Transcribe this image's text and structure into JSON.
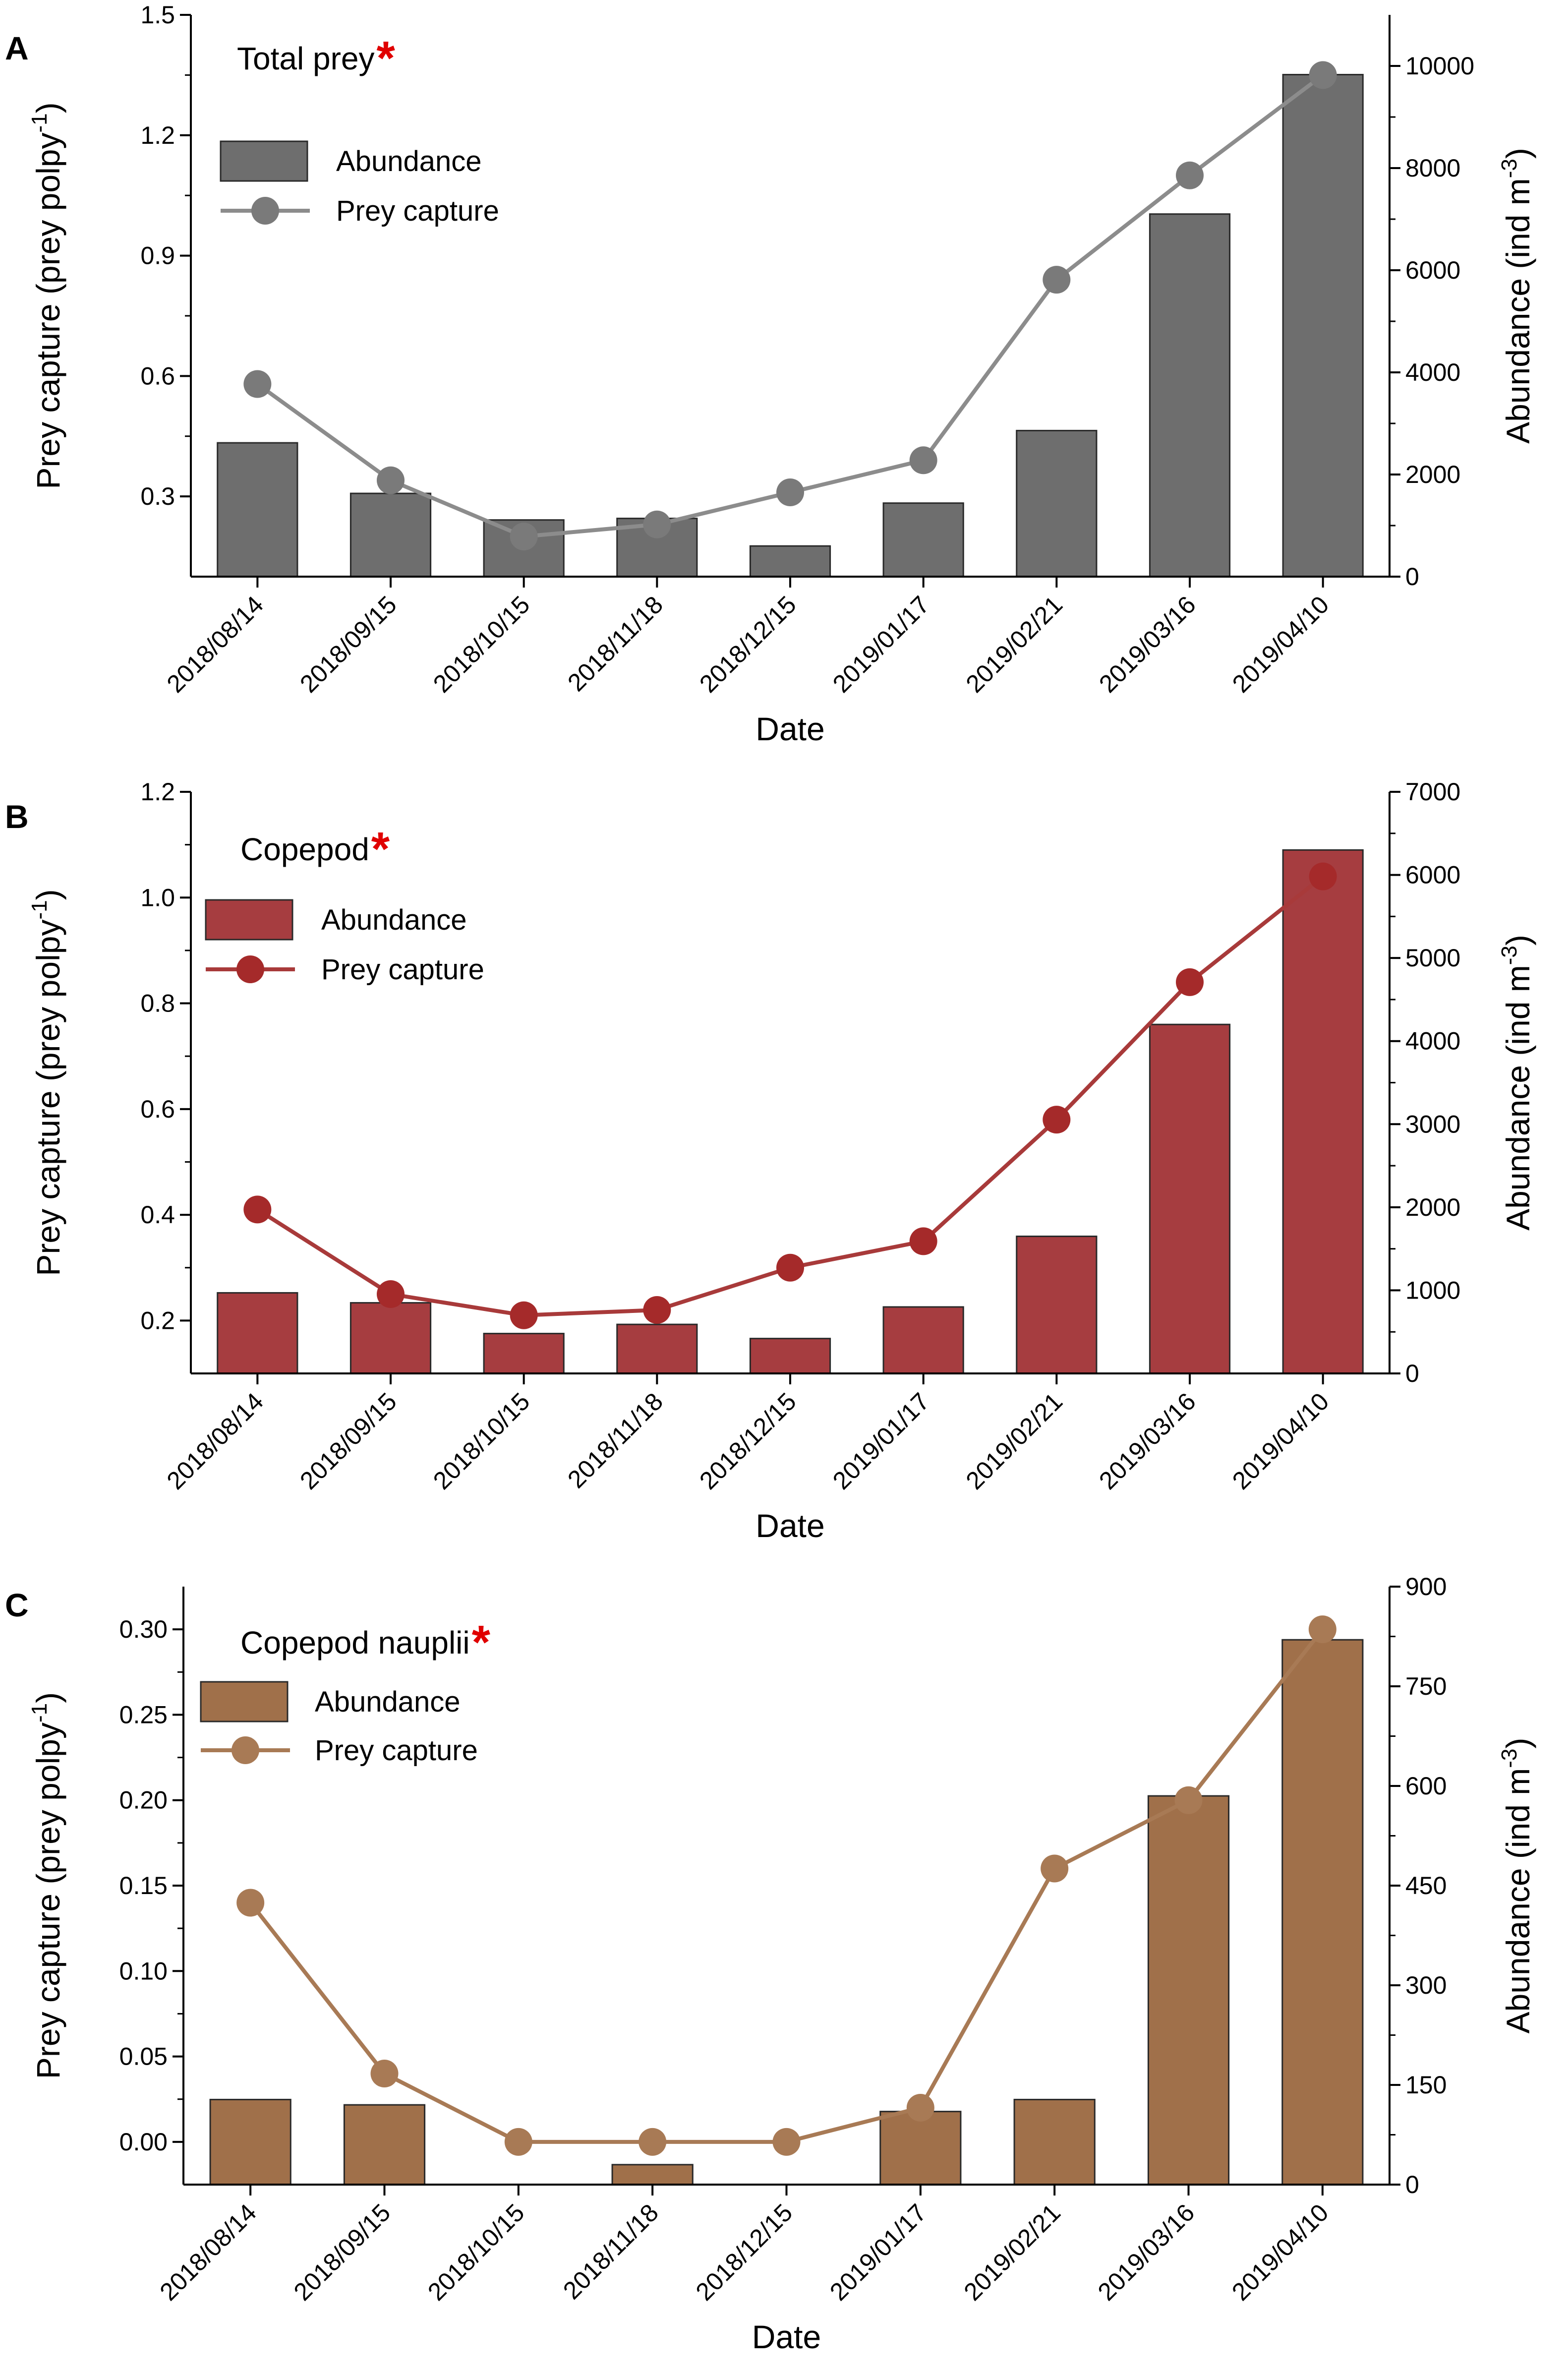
{
  "chart_data": [
    {
      "type": "bar+line",
      "panel": "A",
      "title": "Total prey",
      "title_marker": "*",
      "categories": [
        "2018/08/14",
        "2018/09/15",
        "2018/10/15",
        "2018/11/18",
        "2018/12/15",
        "2019/01/17",
        "2019/02/21",
        "2019/03/16",
        "2019/04/10"
      ],
      "xlabel": "Date",
      "ylabel_left": "Prey capture (prey polpy-1)",
      "ylabel_left_base": "Prey capture (prey polpy",
      "ylabel_left_sup": "-1",
      "ylabel_right": "Abundance (ind m-3)",
      "ylabel_right_base": "Abundance (ind m",
      "ylabel_right_sup": "-3",
      "ylim_left": [
        0.1,
        1.5
      ],
      "yticks_left": [
        "0.3",
        "0.6",
        "0.9",
        "1.2",
        "1.5"
      ],
      "ylim_right": [
        0,
        11000
      ],
      "yticks_right": [
        "0",
        "2000",
        "4000",
        "6000",
        "8000",
        "10000"
      ],
      "series": [
        {
          "name": "Abundance",
          "kind": "bar",
          "axis": "right",
          "color": "#6e6e6e",
          "values": [
            2620,
            1630,
            1110,
            1140,
            600,
            1440,
            2860,
            7100,
            9830
          ]
        },
        {
          "name": "Prey capture",
          "kind": "line",
          "axis": "left",
          "color": "#7a7a7a",
          "line_color": "#8c8c8c",
          "values": [
            0.58,
            0.34,
            0.2,
            0.23,
            0.31,
            0.39,
            0.84,
            1.1,
            1.35
          ]
        }
      ],
      "legend": [
        "Abundance",
        "Prey capture"
      ],
      "legend_position": "top-left"
    },
    {
      "type": "bar+line",
      "panel": "B",
      "title": "Copepod",
      "title_marker": "*",
      "categories": [
        "2018/08/14",
        "2018/09/15",
        "2018/10/15",
        "2018/11/18",
        "2018/12/15",
        "2019/01/17",
        "2019/02/21",
        "2019/03/16",
        "2019/04/10"
      ],
      "xlabel": "Date",
      "ylabel_left": "Prey capture (prey polpy-1)",
      "ylabel_left_base": "Prey capture (prey polpy",
      "ylabel_left_sup": "-1",
      "ylabel_right": "Abundance (ind m-3)",
      "ylabel_right_base": "Abundance (ind m",
      "ylabel_right_sup": "-3",
      "ylim_left": [
        0.1,
        1.2
      ],
      "yticks_left": [
        "0.2",
        "0.4",
        "0.6",
        "0.8",
        "1.0",
        "1.2"
      ],
      "ylim_right": [
        0,
        7000
      ],
      "yticks_right": [
        "0",
        "1000",
        "2000",
        "3000",
        "4000",
        "5000",
        "6000",
        "7000"
      ],
      "series": [
        {
          "name": "Abundance",
          "kind": "bar",
          "axis": "right",
          "color": "#a63d40",
          "values": [
            970,
            850,
            480,
            590,
            420,
            800,
            1650,
            4200,
            6300
          ]
        },
        {
          "name": "Prey capture",
          "kind": "line",
          "axis": "left",
          "color": "#a52a2a",
          "line_color": "#a83a3a",
          "values": [
            0.41,
            0.25,
            0.21,
            0.22,
            0.3,
            0.35,
            0.58,
            0.84,
            1.04
          ]
        }
      ],
      "legend": [
        "Abundance",
        "Prey capture"
      ],
      "legend_position": "top-left"
    },
    {
      "type": "bar+line",
      "panel": "C",
      "title": "Copepod nauplii",
      "title_marker": "*",
      "categories": [
        "2018/08/14",
        "2018/09/15",
        "2018/10/15",
        "2018/11/18",
        "2018/12/15",
        "2019/01/17",
        "2019/02/21",
        "2019/03/16",
        "2019/04/10"
      ],
      "xlabel": "Date",
      "ylabel_left": "Prey capture (prey polpy-1)",
      "ylabel_left_base": "Prey capture (prey polpy",
      "ylabel_left_sup": "-1",
      "ylabel_right": "Abundance (ind m-3)",
      "ylabel_right_base": "Abundance (ind m",
      "ylabel_right_sup": "-3",
      "ylim_left": [
        -0.025,
        0.325
      ],
      "yticks_left": [
        "0.00",
        "0.05",
        "0.10",
        "0.15",
        "0.20",
        "0.25",
        "0.30"
      ],
      "ylim_right": [
        0,
        900
      ],
      "yticks_right": [
        "0",
        "150",
        "300",
        "450",
        "600",
        "750",
        "900"
      ],
      "series": [
        {
          "name": "Abundance",
          "kind": "bar",
          "axis": "right",
          "color": "#a0704a",
          "values": [
            128,
            120,
            0,
            30,
            0,
            110,
            128,
            585,
            820
          ]
        },
        {
          "name": "Prey capture",
          "kind": "line",
          "axis": "left",
          "color": "#a87a55",
          "line_color": "#a87a55",
          "values": [
            0.14,
            0.04,
            0.0,
            0.0,
            0.0,
            0.02,
            0.16,
            0.2,
            0.3
          ]
        }
      ],
      "legend": [
        "Abundance",
        "Prey capture"
      ],
      "legend_position": "top-left"
    }
  ]
}
